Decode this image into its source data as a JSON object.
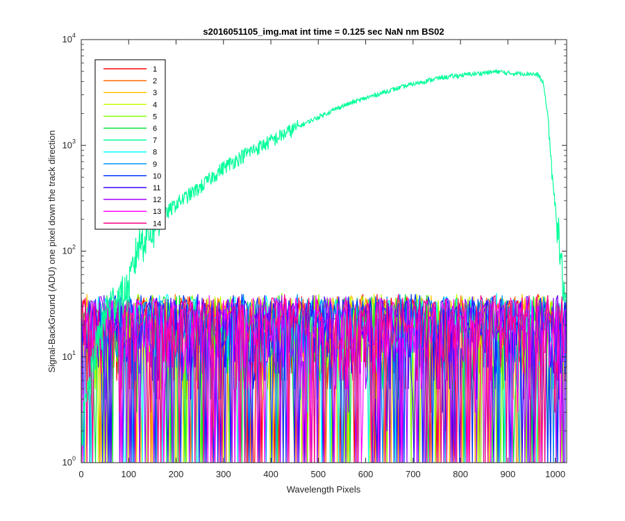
{
  "chart_data": {
    "type": "line",
    "title": "s2016051105_img.mat int time = 0.125 sec  NaN nm BS02",
    "xlabel": "Wavelength Pixels",
    "ylabel": "Signal-BackGround (ADU) one pixel down the track direction",
    "xlim": [
      0,
      1024
    ],
    "ylim": [
      1,
      10000
    ],
    "yscale": "log",
    "grid": false,
    "legend_position": "top-left",
    "x_ticks": [
      "0",
      "100",
      "200",
      "300",
      "400",
      "500",
      "600",
      "700",
      "800",
      "900",
      "1000"
    ],
    "y_ticks": [
      {
        "base": "10",
        "exp": "0"
      },
      {
        "base": "10",
        "exp": "1"
      },
      {
        "base": "10",
        "exp": "2"
      },
      {
        "base": "10",
        "exp": "3"
      },
      {
        "base": "10",
        "exp": "4"
      }
    ],
    "signal_series": {
      "name": "7",
      "x": [
        0,
        30,
        50,
        60,
        80,
        100,
        120,
        150,
        200,
        250,
        300,
        350,
        400,
        450,
        500,
        550,
        600,
        650,
        700,
        750,
        800,
        850,
        880,
        900,
        930,
        950,
        965,
        975,
        985,
        995,
        1005,
        1015,
        1024
      ],
      "y": [
        2,
        12,
        25,
        32,
        38,
        45,
        120,
        170,
        280,
        400,
        620,
        850,
        1100,
        1450,
        1850,
        2350,
        2800,
        3300,
        3800,
        4300,
        4600,
        4850,
        5000,
        4800,
        4800,
        4750,
        4600,
        3800,
        1800,
        400,
        180,
        60,
        25
      ]
    },
    "noise_range": [
      1,
      40
    ],
    "series": [
      {
        "name": "1",
        "color": "#ff0000"
      },
      {
        "name": "2",
        "color": "#ff6a00"
      },
      {
        "name": "3",
        "color": "#ffbf00"
      },
      {
        "name": "4",
        "color": "#bfff00"
      },
      {
        "name": "5",
        "color": "#7fff00"
      },
      {
        "name": "6",
        "color": "#00e63c"
      },
      {
        "name": "7",
        "color": "#00ff99"
      },
      {
        "name": "8",
        "color": "#00ffff"
      },
      {
        "name": "9",
        "color": "#0096ff"
      },
      {
        "name": "10",
        "color": "#0032ff"
      },
      {
        "name": "11",
        "color": "#3c00ff"
      },
      {
        "name": "12",
        "color": "#a000ff"
      },
      {
        "name": "13",
        "color": "#ff00ff"
      },
      {
        "name": "14",
        "color": "#ff0080"
      }
    ]
  }
}
